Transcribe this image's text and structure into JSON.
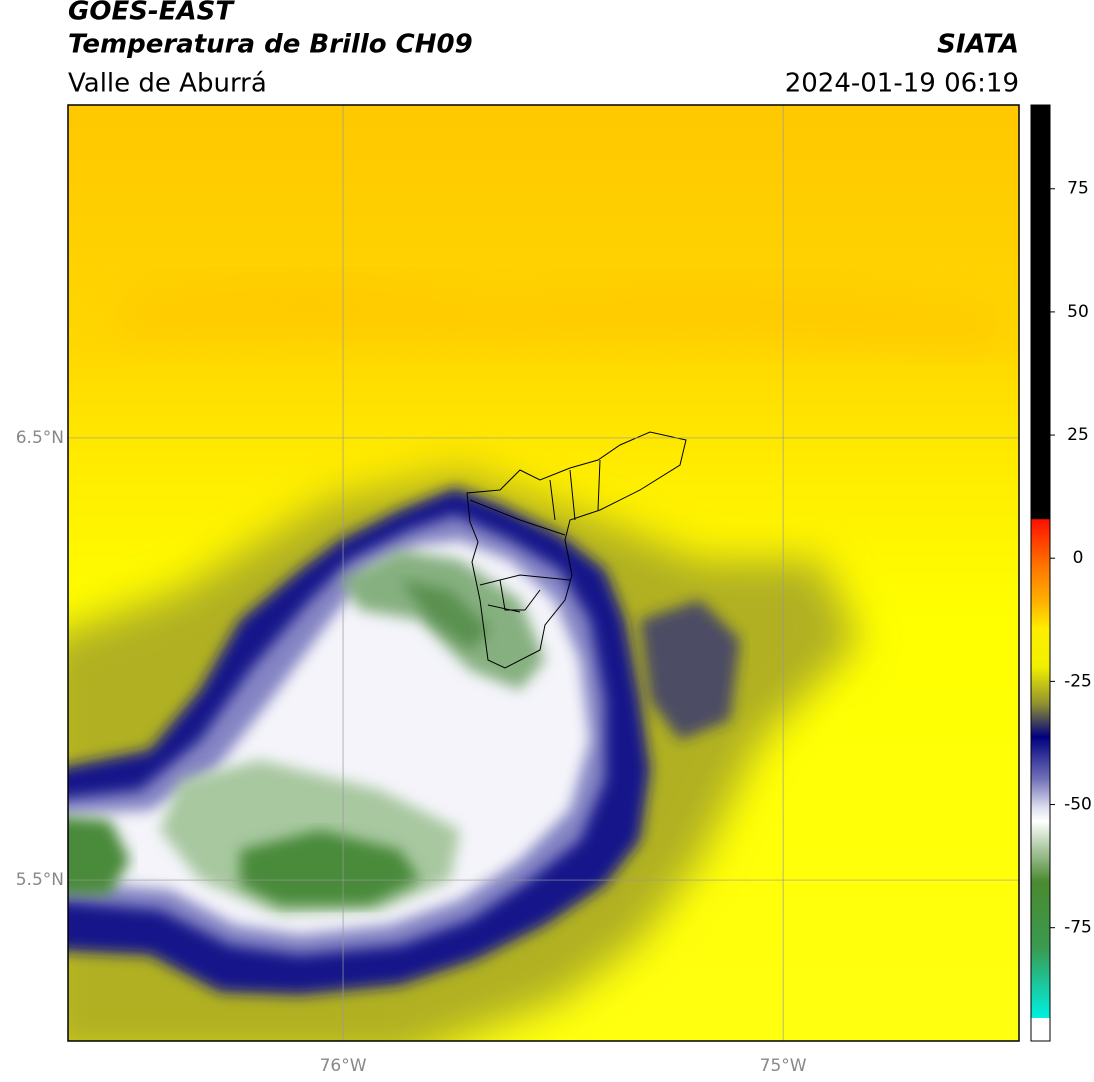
{
  "header": {
    "title": "GOES-EAST",
    "subtitle": "Temperatura de Brillo CH09",
    "region": "Valle de Aburrá",
    "source": "SIATA",
    "datetime": "2024-01-19 06:19"
  },
  "map": {
    "xlim": [
      -76.625,
      -74.464
    ],
    "ylim": [
      5.136,
      7.253
    ],
    "xticks": [
      {
        "value": -76,
        "label": "76°W"
      },
      {
        "value": -75,
        "label": "75°W"
      }
    ],
    "yticks": [
      {
        "value": 5.5,
        "label": "5.5°N"
      },
      {
        "value": 6.5,
        "label": "6.5°N"
      }
    ],
    "grid": true
  },
  "colorbar": {
    "lim": [
      -98,
      92
    ],
    "ticks": [
      -75,
      -50,
      -25,
      0,
      25,
      50,
      75
    ]
  }
}
